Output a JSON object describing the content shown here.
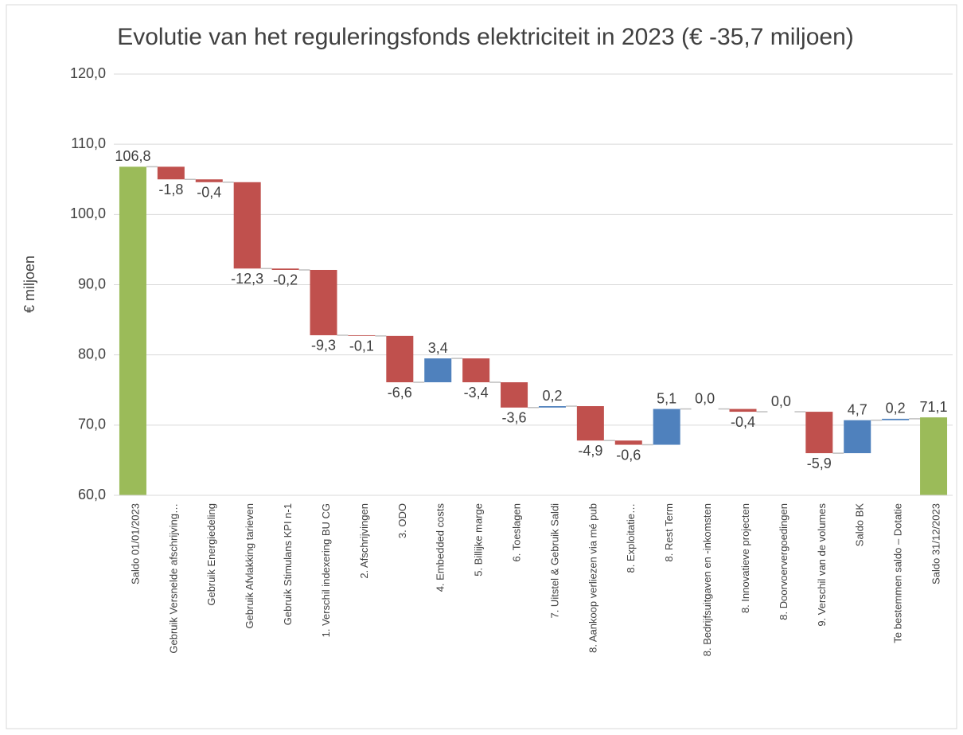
{
  "chart_data": {
    "type": "waterfall",
    "title": "Evolutie van het reguleringsfonds elektriciteit in 2023 (€ -35,7 miljoen)",
    "y_label": "€ miljoen",
    "categories": [
      "Saldo 01/01/2023",
      "Gebruik Versnelde afschrijving…",
      "Gebruik Energiedeling",
      "Gebruik Afvlakking tarieven",
      "Gebruik Stimulans KPI n-1",
      "1. Verschil indexering BU CG",
      "2. Afschrijvingen",
      "3. ODO",
      "4. Embedded costs",
      "5. Billijke marge",
      "6. Toeslagen",
      "7. Uitstel & Gebruik Saldi",
      "8. Aankoop verliezen via mé pub",
      "8. Exploitatie…",
      "8. Rest Term",
      "8. Bedrijfsuitgaven en -inkomsten",
      "8. Innovatieve projecten",
      "8. Doorvoervergoedingen",
      "9. Verschil van de volumes",
      "Saldo BK",
      "Te bestemmen saldo – Dotatie",
      "Saldo 31/12/2023"
    ],
    "values": [
      106.8,
      -1.8,
      -0.4,
      -12.3,
      -0.2,
      -9.3,
      -0.1,
      -6.6,
      3.4,
      -3.4,
      -3.6,
      0.2,
      -4.9,
      -0.6,
      5.1,
      0.0,
      -0.4,
      0.0,
      -5.9,
      4.7,
      0.2,
      71.1
    ],
    "value_labels": [
      "106,8",
      "-1,8",
      "-0,4",
      "-12,3",
      "-0,2",
      "-9,3",
      "-0,1",
      "-6,6",
      "3,4",
      "-3,4",
      "-3,6",
      "0,2",
      "-4,9",
      "-0,6",
      "5,1",
      "0,0",
      "-0,4",
      "0,0",
      "-5,9",
      "4,7",
      "0,2",
      "71,1"
    ],
    "totals": [
      true,
      false,
      false,
      false,
      false,
      false,
      false,
      false,
      false,
      false,
      false,
      false,
      false,
      false,
      false,
      false,
      false,
      false,
      false,
      false,
      false,
      true
    ],
    "colors": [
      "#9bbb59",
      "#c0504d",
      "#c0504d",
      "#c0504d",
      "#c0504d",
      "#c0504d",
      "#c0504d",
      "#c0504d",
      "#4f81bd",
      "#c0504d",
      "#c0504d",
      "#4f81bd",
      "#c0504d",
      "#c0504d",
      "#4f81bd",
      "#c0504d",
      "#c0504d",
      "#4f81bd",
      "#c0504d",
      "#4f81bd",
      "#4f81bd",
      "#9bbb59"
    ],
    "ylim": [
      60,
      120
    ],
    "yticks": [
      {
        "value": 60,
        "label": "60,0"
      },
      {
        "value": 70,
        "label": "70,0"
      },
      {
        "value": 80,
        "label": "80,0"
      },
      {
        "value": 90,
        "label": "90,0"
      },
      {
        "value": 100,
        "label": "100,0"
      },
      {
        "value": 110,
        "label": "110,0"
      },
      {
        "value": 120,
        "label": "120,0"
      }
    ],
    "grid": true
  }
}
